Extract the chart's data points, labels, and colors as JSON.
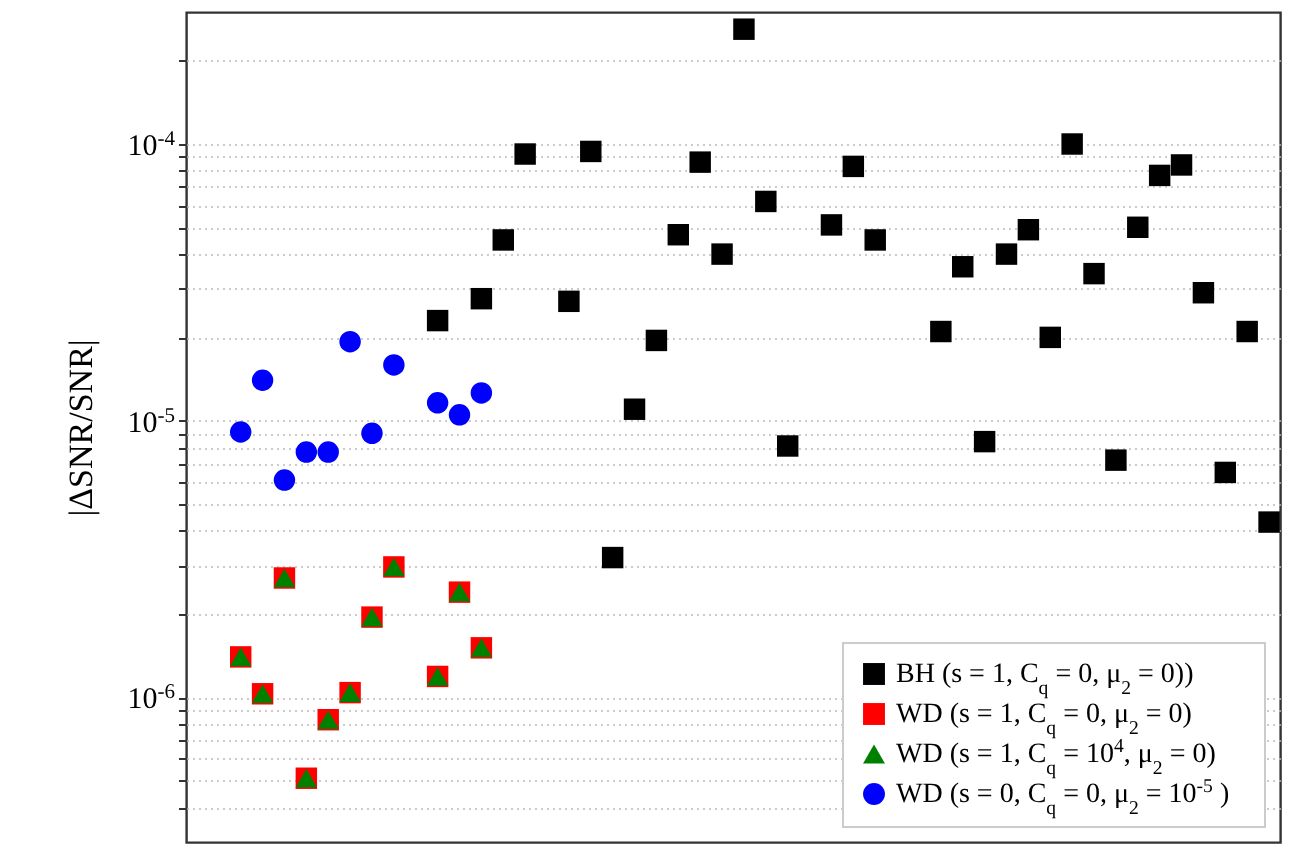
{
  "chart_data": {
    "type": "scatter",
    "ylabel": "|ΔSNR/SNR|",
    "log": "y",
    "grid": "y",
    "legend": "bottom right",
    "tick_labels": "y",
    "categories": [
      null,
      null,
      null,
      null,
      null,
      null,
      null,
      null,
      null,
      null,
      null,
      null,
      null,
      null,
      null,
      null,
      null,
      null,
      null,
      null,
      null,
      null,
      null,
      null,
      null,
      null,
      null,
      null,
      null,
      null,
      null,
      null,
      null,
      null,
      null,
      null,
      null,
      null,
      null,
      null,
      null,
      null,
      null,
      null,
      null,
      null,
      null,
      null,
      null,
      null
    ],
    "ylim": [
      3e-07,
      0.0003
    ],
    "yticks": [
      {
        "value": 4e-07,
        "label": null
      },
      {
        "value": 5e-07,
        "label": null
      },
      {
        "value": 6e-07,
        "label": null
      },
      {
        "value": 7e-07,
        "label": null
      },
      {
        "value": 8e-07,
        "label": null
      },
      {
        "value": 9e-07,
        "label": null
      },
      {
        "value": 1e-06,
        "label": "10$^{-6}$"
      },
      {
        "value": 2e-06,
        "label": null
      },
      {
        "value": 3e-06,
        "label": null
      },
      {
        "value": 4e-06,
        "label": null
      },
      {
        "value": 5e-06,
        "label": null
      },
      {
        "value": 6e-06,
        "label": null
      },
      {
        "value": 7e-06,
        "label": null
      },
      {
        "value": 8e-06,
        "label": null
      },
      {
        "value": 9e-06,
        "label": null
      },
      {
        "value": 1e-05,
        "label": "10$^{-5}$"
      },
      {
        "value": 2e-05,
        "label": null
      },
      {
        "value": 3e-05,
        "label": null
      },
      {
        "value": 4e-05,
        "label": null
      },
      {
        "value": 5e-05,
        "label": null
      },
      {
        "value": 6e-05,
        "label": null
      },
      {
        "value": 7e-05,
        "label": null
      },
      {
        "value": 8e-05,
        "label": null
      },
      {
        "value": 9e-05,
        "label": null
      },
      {
        "value": 0.0001,
        "label": "10$^{-4}$"
      },
      {
        "value": 0.0002,
        "label": null
      }
    ],
    "series": [
      {
        "name": "BH (s = 1, C$_{q}$ = 0, μ$_{2}$ = 0))",
        "color": "#000000",
        "marker": "square",
        "values": [
          null,
          null,
          null,
          null,
          null,
          null,
          null,
          null,
          null,
          null,
          null,
          2.3e-05,
          null,
          2.76e-05,
          4.5e-05,
          9.2e-05,
          null,
          2.7e-05,
          9.4e-05,
          3.2e-06,
          1.1e-05,
          1.95e-05,
          4.7e-05,
          8.6e-05,
          4e-05,
          0.00026,
          6.2e-05,
          8.1e-06,
          null,
          5.1e-05,
          8.3e-05,
          4.5e-05,
          null,
          null,
          2.1e-05,
          3.6e-05,
          8.4e-06,
          4e-05,
          4.9e-05,
          2e-05,
          0.0001,
          3.4e-05,
          7.2e-06,
          5e-05,
          7.7e-05,
          8.4e-05,
          2.9e-05,
          6.5e-06,
          2.1e-05,
          4.3e-06
        ]
      },
      {
        "name": "WD (s = 1, C$_{q}$ = 0, μ$_{2}$ = 0)",
        "color": "#ff0000",
        "marker": "square",
        "values": [
          null,
          null,
          1.4e-06,
          1.03e-06,
          2.7e-06,
          5.1e-07,
          8.3e-07,
          1.04e-06,
          1.95e-06,
          2.96e-06,
          null,
          1.19e-06,
          2.4e-06,
          1.51e-06,
          null,
          null,
          null,
          null,
          null,
          null,
          null,
          null,
          null,
          null,
          null,
          null,
          null,
          null,
          null,
          null,
          null,
          null,
          null,
          null,
          null,
          null,
          null,
          null,
          null,
          null,
          null,
          null,
          null,
          null,
          null,
          null,
          null,
          null,
          null,
          null
        ]
      },
      {
        "name": "WD (s = 1, C$_{q}$ = 10$^{4}$, μ$_{2}$ = 0)",
        "color": "#008000",
        "marker": "triangle",
        "values": [
          null,
          null,
          1.4e-06,
          1.03e-06,
          2.7e-06,
          5.1e-07,
          8.3e-07,
          1.04e-06,
          1.95e-06,
          2.96e-06,
          null,
          1.19e-06,
          2.4e-06,
          1.51e-06,
          null,
          null,
          null,
          null,
          null,
          null,
          null,
          null,
          null,
          null,
          null,
          null,
          null,
          null,
          null,
          null,
          null,
          null,
          null,
          null,
          null,
          null,
          null,
          null,
          null,
          null,
          null,
          null,
          null,
          null,
          null,
          null,
          null,
          null,
          null,
          null
        ]
      },
      {
        "name": "WD (s = 0, C$_{q}$ = 0, μ$_{2}$ = 10$^{-5}$ )",
        "color": "#0000ff",
        "marker": "circle",
        "values": [
          null,
          null,
          9.1e-06,
          1.4e-05,
          6.1e-06,
          7.7e-06,
          7.7e-06,
          1.93e-05,
          9e-06,
          1.59e-05,
          null,
          1.16e-05,
          1.05e-05,
          1.26e-05,
          null,
          null,
          null,
          null,
          null,
          null,
          null,
          null,
          null,
          null,
          null,
          null,
          null,
          null,
          null,
          null,
          null,
          null,
          null,
          null,
          null,
          null,
          null,
          null,
          null,
          null,
          null,
          null,
          null,
          null,
          null,
          null,
          null,
          null,
          null,
          null
        ]
      }
    ]
  }
}
